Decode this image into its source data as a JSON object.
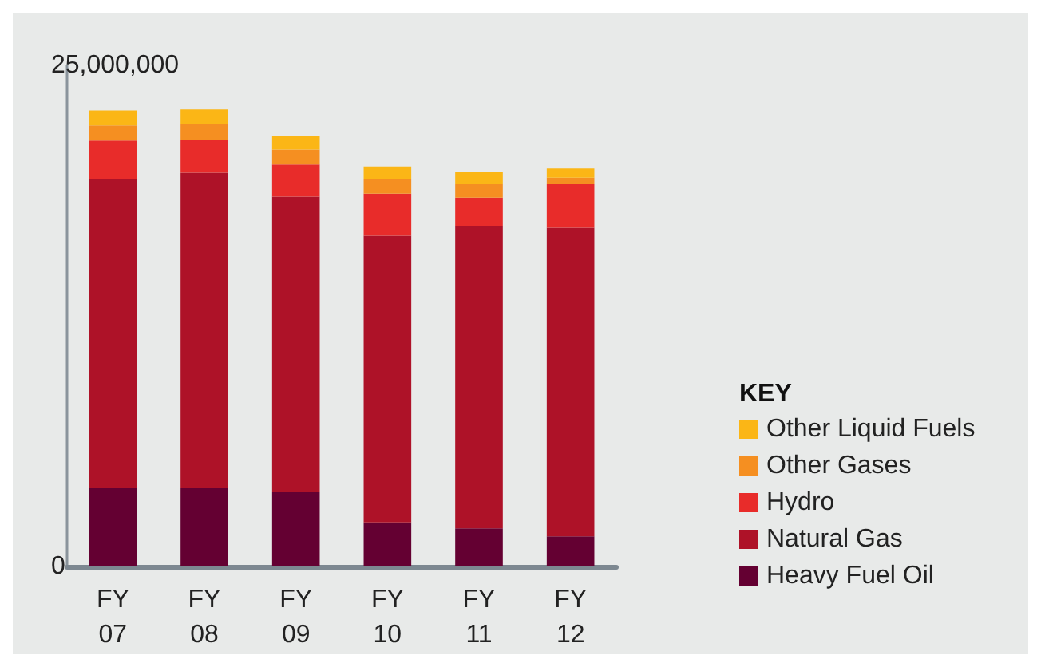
{
  "chart_data": {
    "type": "bar",
    "stacked": true,
    "categories": [
      "FY\n07",
      "FY\n08",
      "FY\n09",
      "FY\n10",
      "FY\n11",
      "FY\n12"
    ],
    "series": [
      {
        "name": "Heavy Fuel Oil",
        "color": "#640032",
        "values": [
          3900000,
          3900000,
          3700000,
          2200000,
          1900000,
          1500000
        ]
      },
      {
        "name": "Natural Gas",
        "color": "#ae1228",
        "values": [
          15450000,
          15750000,
          14750000,
          14300000,
          15100000,
          15400000
        ]
      },
      {
        "name": "Hydro",
        "color": "#e82c2a",
        "values": [
          1900000,
          1650000,
          1600000,
          2100000,
          1400000,
          2200000
        ]
      },
      {
        "name": "Other Gases",
        "color": "#f58f21",
        "values": [
          750000,
          750000,
          750000,
          750000,
          700000,
          300000
        ]
      },
      {
        "name": "Other Liquid Fuels",
        "color": "#fbb616",
        "values": [
          750000,
          750000,
          700000,
          600000,
          600000,
          450000
        ]
      }
    ],
    "ylim": [
      0,
      25000000
    ],
    "yticks": [
      0,
      {
        "value": 25000000,
        "label": "25,000,000"
      }
    ],
    "grid": false,
    "legend": "right",
    "legend_title": "KEY"
  }
}
